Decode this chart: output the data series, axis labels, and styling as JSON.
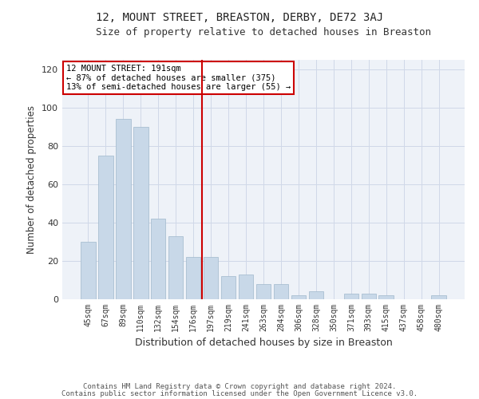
{
  "title": "12, MOUNT STREET, BREASTON, DERBY, DE72 3AJ",
  "subtitle": "Size of property relative to detached houses in Breaston",
  "xlabel": "Distribution of detached houses by size in Breaston",
  "ylabel": "Number of detached properties",
  "property_label": "12 MOUNT STREET: 191sqm",
  "pct_smaller": "87% of detached houses are smaller (375)",
  "pct_larger": "13% of semi-detached houses are larger (55)",
  "categories": [
    "45sqm",
    "67sqm",
    "89sqm",
    "110sqm",
    "132sqm",
    "154sqm",
    "176sqm",
    "197sqm",
    "219sqm",
    "241sqm",
    "263sqm",
    "284sqm",
    "306sqm",
    "328sqm",
    "350sqm",
    "371sqm",
    "393sqm",
    "415sqm",
    "437sqm",
    "458sqm",
    "480sqm"
  ],
  "bar_heights": [
    30,
    75,
    94,
    90,
    42,
    33,
    22,
    22,
    12,
    13,
    8,
    8,
    2,
    4,
    0,
    3,
    3,
    2,
    0,
    0,
    2
  ],
  "bar_color": "#c8d8e8",
  "bar_edge_color": "#a0b8cc",
  "vline_color": "#cc0000",
  "grid_color": "#d0d8e8",
  "background_color": "#ffffff",
  "plot_bg_color": "#eef2f8",
  "annotation_box_color": "#ffffff",
  "annotation_box_edge": "#cc0000",
  "ylim": [
    0,
    125
  ],
  "yticks": [
    0,
    20,
    40,
    60,
    80,
    100,
    120
  ],
  "footer1": "Contains HM Land Registry data © Crown copyright and database right 2024.",
  "footer2": "Contains public sector information licensed under the Open Government Licence v3.0."
}
